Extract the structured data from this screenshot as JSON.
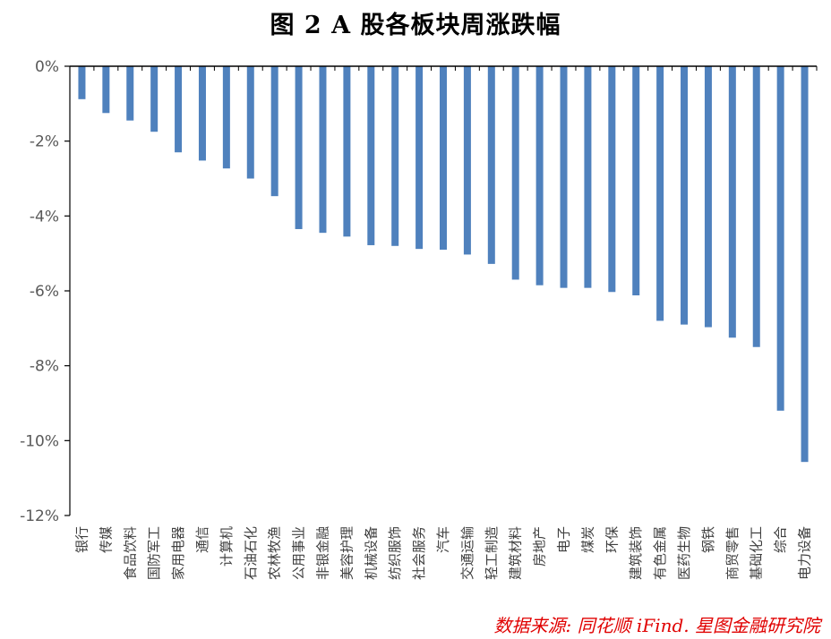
{
  "chart_data": {
    "type": "bar",
    "title": "图 2 A 股各板块周涨跌幅",
    "source": "数据来源: 同花顺 iFind. 星图金融研究院",
    "bar_color": "#4f81bd",
    "ylim": [
      -12,
      0
    ],
    "yticks": [
      0,
      -2,
      -4,
      -6,
      -8,
      -10,
      -12
    ],
    "ytick_labels": [
      "0%",
      "-2%",
      "-4%",
      "-6%",
      "-8%",
      "-10%",
      "-12%"
    ],
    "categories": [
      "银行",
      "传媒",
      "食品饮料",
      "国防军工",
      "家用电器",
      "通信",
      "计算机",
      "石油石化",
      "农林牧渔",
      "公用事业",
      "非银金融",
      "美容护理",
      "机械设备",
      "纺织服饰",
      "社会服务",
      "汽车",
      "交通运输",
      "轻工制造",
      "建筑材料",
      "房地产",
      "电子",
      "煤炭",
      "环保",
      "建筑装饰",
      "有色金属",
      "医药生物",
      "钢铁",
      "商贸零售",
      "基础化工",
      "综合",
      "电力设备"
    ],
    "values": [
      -0.88,
      -1.25,
      -1.45,
      -1.75,
      -2.3,
      -2.52,
      -2.73,
      -3.0,
      -3.47,
      -4.35,
      -4.45,
      -4.55,
      -4.78,
      -4.8,
      -4.88,
      -4.9,
      -5.03,
      -5.28,
      -5.7,
      -5.85,
      -5.92,
      -5.92,
      -6.03,
      -6.12,
      -6.8,
      -6.9,
      -6.97,
      -7.25,
      -7.5,
      -9.2,
      -10.57
    ]
  }
}
